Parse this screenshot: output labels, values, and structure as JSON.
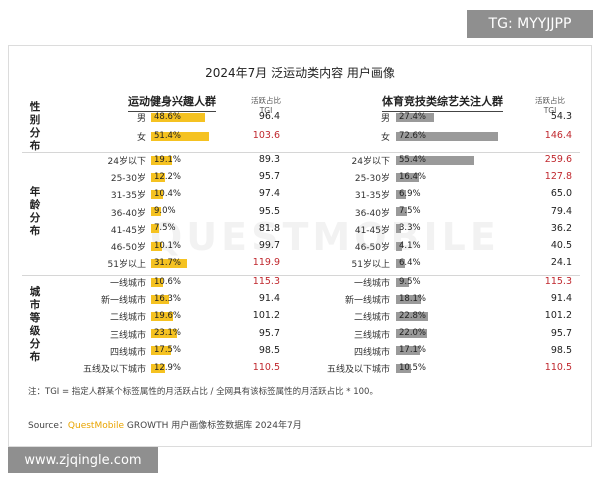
{
  "tag_text": "TG: MYYJJPP",
  "url_text": "www.zjqingle.com",
  "watermark": "QUESTMOBILE",
  "chart_data": {
    "type": "bar",
    "title": "2024年7月 泛运动类内容 用户画像",
    "tgi_header_line1": "活跃占比",
    "tgi_header_line2": "TGI",
    "note": "注：TGI = 指定人群某个标签属性的月活跃占比 / 全网具有该标签属性的月活跃占比 * 100。",
    "source_prefix": "Source：",
    "source_brand": "QuestMobile",
    "source_rest": " GROWTH 用户画像标签数据库 2024年7月",
    "groups": [
      {
        "label": "性别分布",
        "rows": [
          "男",
          "女"
        ]
      },
      {
        "label": "年龄分布",
        "rows": [
          "24岁以下",
          "25-30岁",
          "31-35岁",
          "36-40岁",
          "41-45岁",
          "46-50岁",
          "51岁以上"
        ]
      },
      {
        "label": "城市等级分布",
        "rows": [
          "一线城市",
          "新一线城市",
          "二线城市",
          "三线城市",
          "四线城市",
          "五线及以下城市"
        ]
      }
    ],
    "panels": [
      {
        "name": "运动健身兴趣人群",
        "color": "#f5c221",
        "percent_labels": [
          "48.6%",
          "51.4%",
          "19.1%",
          "12.2%",
          "10.4%",
          "9.0%",
          "7.5%",
          "10.1%",
          "31.7%",
          "10.6%",
          "16.3%",
          "19.6%",
          "23.1%",
          "17.5%",
          "12.9%"
        ],
        "percent_values": [
          48.6,
          51.4,
          19.1,
          12.2,
          10.4,
          9.0,
          7.5,
          10.1,
          31.7,
          10.6,
          16.3,
          19.6,
          23.1,
          17.5,
          12.9
        ],
        "tgi": [
          "96.4",
          "103.6",
          "89.3",
          "95.7",
          "97.4",
          "95.5",
          "81.8",
          "99.7",
          "119.9",
          "115.3",
          "91.4",
          "101.2",
          "95.7",
          "98.5",
          "110.5"
        ],
        "tgi_highlight": [
          false,
          true,
          false,
          false,
          false,
          false,
          false,
          false,
          true,
          true,
          false,
          false,
          false,
          false,
          true
        ]
      },
      {
        "name": "体育竞技类综艺关注人群",
        "color": "#9a9a9a",
        "percent_labels": [
          "27.4%",
          "72.6%",
          "55.4%",
          "16.4%",
          "6.9%",
          "7.5%",
          "3.3%",
          "4.1%",
          "6.4%",
          "9.5%",
          "18.1%",
          "22.8%",
          "22.0%",
          "17.1%",
          "10.5%"
        ],
        "percent_values": [
          27.4,
          72.6,
          55.4,
          16.4,
          6.9,
          7.5,
          3.3,
          4.1,
          6.4,
          9.5,
          18.1,
          22.8,
          22.0,
          17.1,
          10.5
        ],
        "tgi": [
          "54.3",
          "146.4",
          "259.6",
          "127.8",
          "65.0",
          "79.4",
          "36.2",
          "40.5",
          "24.1",
          "115.3",
          "91.4",
          "101.2",
          "95.7",
          "98.5",
          "110.5"
        ],
        "tgi_highlight": [
          false,
          true,
          true,
          true,
          false,
          false,
          false,
          false,
          false,
          true,
          false,
          false,
          false,
          false,
          true
        ]
      }
    ]
  }
}
